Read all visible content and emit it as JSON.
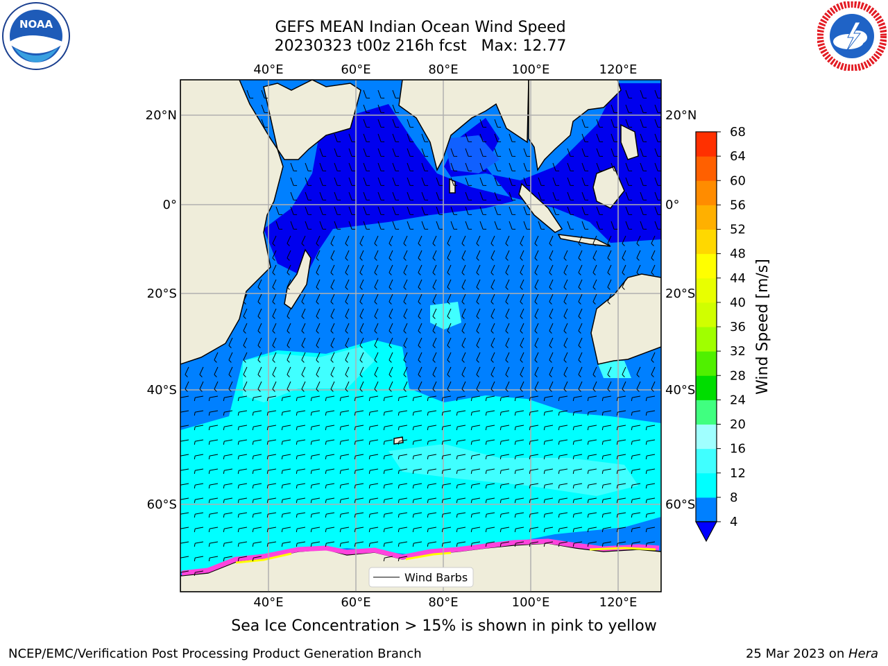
{
  "title": {
    "line1": "GEFS MEAN Indian Ocean Wind Speed",
    "line2": "20230323 t00z 216h fcst   Max: 12.77"
  },
  "map": {
    "lon_ticks": [
      "40°E",
      "60°E",
      "80°E",
      "100°E",
      "120°E"
    ],
    "lat_ticks": [
      "20°N",
      "0°",
      "20°S",
      "40°S",
      "60°S"
    ],
    "legend_label": "Wind Barbs"
  },
  "colorbar": {
    "label": "Wind Speed [m/s]",
    "ticks": [
      "4",
      "8",
      "12",
      "16",
      "20",
      "24",
      "28",
      "32",
      "36",
      "40",
      "44",
      "48",
      "52",
      "56",
      "60",
      "64",
      "68"
    ],
    "colors": [
      "#0080ff",
      "#00ffff",
      "#40ffff",
      "#a0ffff",
      "#40ff80",
      "#00dd00",
      "#50f000",
      "#a0ff00",
      "#d0ff00",
      "#e8ff00",
      "#ffff00",
      "#ffd800",
      "#ffb000",
      "#ff8c00",
      "#ff6000",
      "#ff3000",
      "#ff0000"
    ],
    "under_color": "#0000ff"
  },
  "palette": {
    "land": "#efedda",
    "ocean_deep": "#0000ee",
    "ocean_blue": "#0080ff",
    "ocean_cyan": "#00ffff",
    "ocean_light": "#40ffff",
    "ice_pink": "#ff44dd",
    "ice_yellow": "#ffff00"
  },
  "footer": {
    "note": "Sea Ice Concentration > 15% is shown in pink to yellow",
    "credit": "NCEP/EMC/Verification Post Processing Product Generation Branch",
    "date": "25 Mar 2023 on ",
    "machine": "Hera"
  },
  "logos": {
    "noaa": "NOAA",
    "nws": "NATIONAL WEATHER SERVICE"
  }
}
